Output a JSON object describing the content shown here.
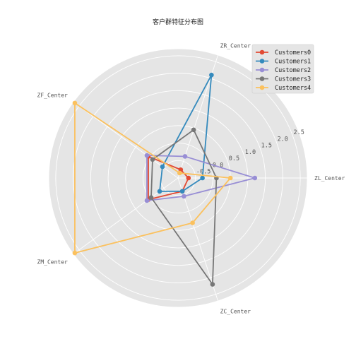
{
  "chart_data": {
    "type": "radar",
    "title": "客户群特征分布图",
    "axes": [
      "ZL_Center",
      "ZR_Center",
      "ZF_Center",
      "ZM_Center",
      "ZC_Center"
    ],
    "radial_ticks": [
      "-0.5",
      "0.0",
      "0.5",
      "1.0",
      "1.5",
      "2.0",
      "2.5"
    ],
    "rlim": [
      -1.0,
      2.7
    ],
    "grid": true,
    "legend_position": "top-right",
    "series": [
      {
        "name": "Customers0",
        "color": "#E24A33",
        "values": [
          -0.7,
          -0.75,
          0.05,
          0.05,
          -0.6
        ]
      },
      {
        "name": "Customers1",
        "color": "#348ABD",
        "values": [
          -0.3,
          2.1,
          -0.45,
          -0.35,
          -0.6
        ]
      },
      {
        "name": "Customers2",
        "color": "#988ED5",
        "values": [
          1.2,
          -0.35,
          0.1,
          0.1,
          -0.45
        ]
      },
      {
        "name": "Customers3",
        "color": "#777777",
        "values": [
          0.1,
          0.45,
          -0.1,
          -0.05,
          2.2
        ]
      },
      {
        "name": "Customers4",
        "color": "#FBC15E",
        "values": [
          0.5,
          -0.85,
          2.65,
          2.65,
          0.35
        ]
      }
    ]
  }
}
